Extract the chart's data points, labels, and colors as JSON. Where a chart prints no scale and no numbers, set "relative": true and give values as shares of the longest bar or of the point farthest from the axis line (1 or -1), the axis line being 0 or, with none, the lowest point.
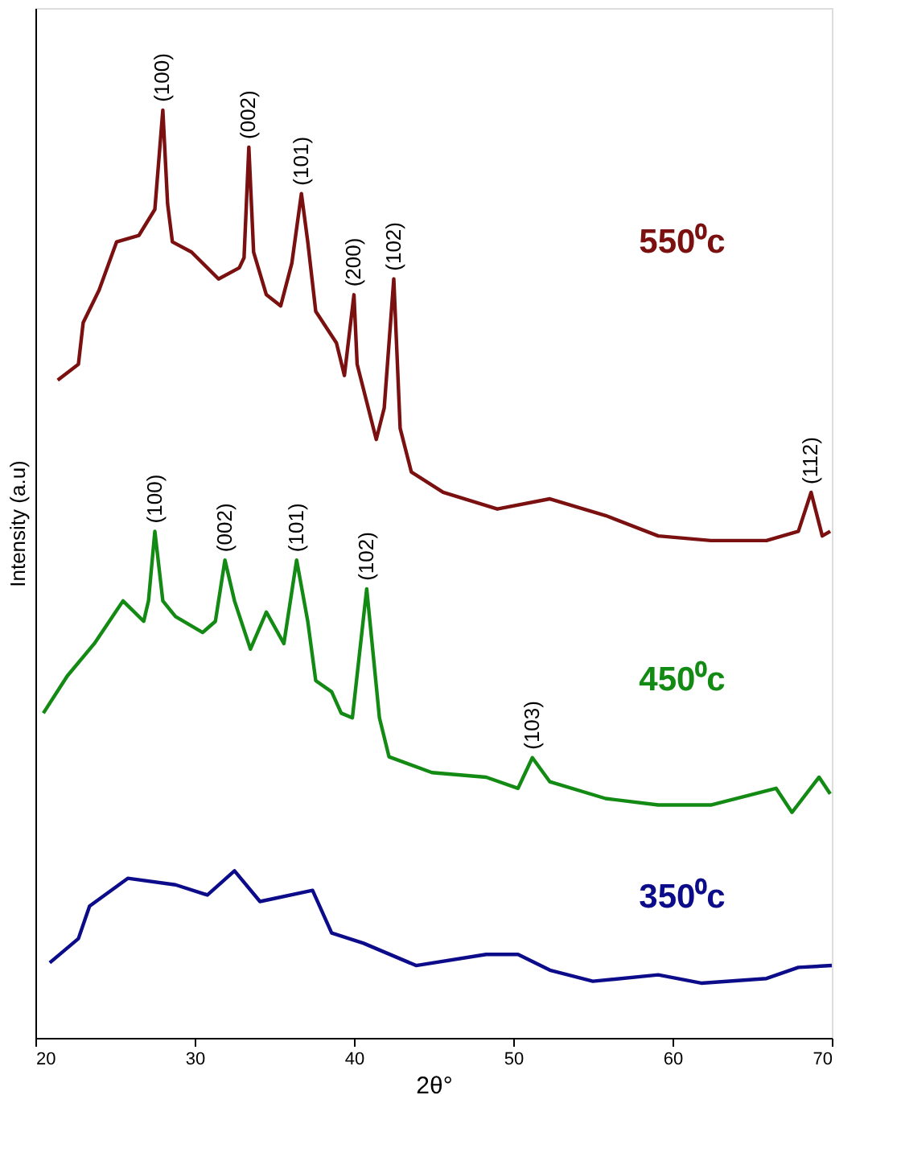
{
  "chart_data": {
    "type": "line",
    "relative": true,
    "xlabel": "2θ°",
    "ylabel": "Intensity (a.u)",
    "xlim": [
      20,
      70
    ],
    "xticks": [
      20,
      30,
      40,
      50,
      60,
      70
    ],
    "grid": false,
    "line_style": "solid",
    "marker": "none",
    "series": [
      {
        "name": "550⁰c",
        "color": "#7a1010",
        "x": [
          21.4,
          22.7,
          23.0,
          24.0,
          25.1,
          26.5,
          27.5,
          28.0,
          28.3,
          28.6,
          29.8,
          31.5,
          32.8,
          33.1,
          33.4,
          33.7,
          34.5,
          35.4,
          36.1,
          36.7,
          37.1,
          37.6,
          38.9,
          39.4,
          40.0,
          40.2,
          41.4,
          41.9,
          42.5,
          42.9,
          43.6,
          45.6,
          49.0,
          52.3,
          55.8,
          59.1,
          62.4,
          65.9,
          67.9,
          68.7,
          69.4,
          69.9
        ],
        "values": [
          0.709,
          0.726,
          0.771,
          0.806,
          0.858,
          0.865,
          0.893,
          1.0,
          0.899,
          0.858,
          0.847,
          0.818,
          0.83,
          0.841,
          0.96,
          0.847,
          0.801,
          0.789,
          0.835,
          0.91,
          0.858,
          0.783,
          0.749,
          0.714,
          0.801,
          0.726,
          0.645,
          0.679,
          0.818,
          0.657,
          0.61,
          0.588,
          0.57,
          0.581,
          0.563,
          0.541,
          0.536,
          0.536,
          0.546,
          0.588,
          0.541,
          0.546
        ]
      },
      {
        "name": "450⁰c",
        "color": "#138a13",
        "x": [
          20.5,
          22.0,
          23.7,
          25.5,
          26.8,
          27.1,
          27.5,
          28.0,
          28.8,
          30.5,
          31.3,
          31.9,
          32.5,
          33.5,
          34.5,
          35.6,
          36.4,
          37.1,
          37.6,
          38.6,
          39.2,
          39.9,
          40.8,
          41.6,
          42.2,
          44.9,
          48.3,
          50.3,
          51.2,
          52.3,
          55.8,
          59.1,
          62.4,
          66.5,
          67.5,
          69.2,
          69.9
        ],
        "values": [
          0.35,
          0.39,
          0.425,
          0.471,
          0.449,
          0.471,
          0.546,
          0.471,
          0.454,
          0.437,
          0.449,
          0.515,
          0.471,
          0.419,
          0.459,
          0.425,
          0.515,
          0.449,
          0.385,
          0.373,
          0.35,
          0.345,
          0.484,
          0.345,
          0.303,
          0.286,
          0.281,
          0.269,
          0.302,
          0.276,
          0.258,
          0.251,
          0.251,
          0.269,
          0.243,
          0.281,
          0.263
        ]
      },
      {
        "name": "350⁰c",
        "color": "#0c0c8a",
        "x": [
          20.9,
          22.7,
          23.4,
          25.8,
          28.8,
          30.8,
          32.5,
          34.1,
          37.4,
          38.6,
          40.6,
          43.9,
          48.3,
          50.3,
          52.3,
          55.0,
          59.1,
          61.8,
          65.9,
          67.9,
          70.0
        ],
        "values": [
          0.081,
          0.107,
          0.142,
          0.172,
          0.165,
          0.154,
          0.18,
          0.147,
          0.159,
          0.113,
          0.102,
          0.078,
          0.09,
          0.09,
          0.073,
          0.061,
          0.068,
          0.059,
          0.064,
          0.076,
          0.078
        ]
      }
    ],
    "annotations": [
      {
        "text": "(100)",
        "x": 28.0,
        "y": 1.0
      },
      {
        "text": "(002)",
        "x": 33.4,
        "y": 0.96
      },
      {
        "text": "(101)",
        "x": 36.7,
        "y": 0.91
      },
      {
        "text": "(200)",
        "x": 40.0,
        "y": 0.801
      },
      {
        "text": "(102)",
        "x": 42.5,
        "y": 0.818
      },
      {
        "text": "(112)",
        "x": 68.7,
        "y": 0.588
      },
      {
        "text": "(100)",
        "x": 27.5,
        "y": 0.546
      },
      {
        "text": "(002)",
        "x": 31.9,
        "y": 0.515
      },
      {
        "text": "(101)",
        "x": 36.4,
        "y": 0.515
      },
      {
        "text": "(102)",
        "x": 40.8,
        "y": 0.484
      },
      {
        "text": "(103)",
        "x": 51.2,
        "y": 0.302
      }
    ]
  }
}
